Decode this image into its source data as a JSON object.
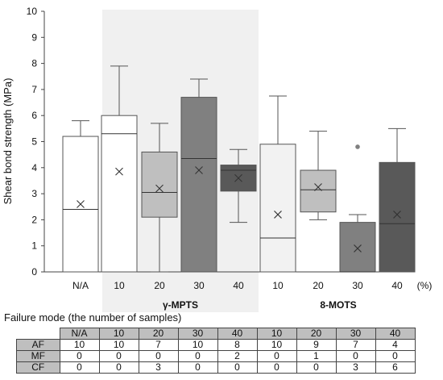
{
  "chart_data": {
    "type": "box",
    "ylabel": "Shear bond strength (MPa)",
    "ylim": [
      0,
      10
    ],
    "yticks": [
      0,
      1,
      2,
      3,
      4,
      5,
      6,
      7,
      8,
      9,
      10
    ],
    "x_unit": "(%)",
    "groups": [
      {
        "label": "",
        "categories": [
          "N/A"
        ],
        "shaded": false
      },
      {
        "label": "γ-MPTS",
        "categories": [
          "10",
          "20",
          "30",
          "40"
        ],
        "shaded": true
      },
      {
        "label": "8-MOTS",
        "categories": [
          "10",
          "20",
          "30",
          "40"
        ],
        "shaded": false
      }
    ],
    "boxes": [
      {
        "group": "",
        "category": "N/A",
        "min": 0,
        "q1": 0,
        "median": 2.4,
        "q3": 5.2,
        "max": 5.8,
        "mean": 2.6,
        "outliers": [],
        "fill": "#ffffff"
      },
      {
        "group": "γ-MPTS",
        "category": "10",
        "min": 0,
        "q1": 0,
        "median": 5.3,
        "q3": 6.0,
        "max": 7.9,
        "mean": 3.85,
        "outliers": [],
        "fill": "#ffffff"
      },
      {
        "group": "γ-MPTS",
        "category": "20",
        "min": 0,
        "q1": 2.1,
        "median": 3.05,
        "q3": 4.6,
        "max": 5.7,
        "mean": 3.2,
        "outliers": [],
        "fill": "#bfbfbf"
      },
      {
        "group": "γ-MPTS",
        "category": "30",
        "min": 0,
        "q1": 0,
        "median": 4.35,
        "q3": 6.7,
        "max": 7.4,
        "mean": 3.9,
        "outliers": [],
        "fill": "#808080"
      },
      {
        "group": "γ-MPTS",
        "category": "40",
        "min": 1.9,
        "q1": 3.1,
        "median": 3.9,
        "q3": 4.1,
        "max": 4.7,
        "mean": 3.6,
        "outliers": [],
        "fill": "#595959"
      },
      {
        "group": "8-MOTS",
        "category": "10",
        "min": 0,
        "q1": 0,
        "median": 1.3,
        "q3": 4.9,
        "max": 6.75,
        "mean": 2.2,
        "outliers": [],
        "fill": "#f2f2f2"
      },
      {
        "group": "8-MOTS",
        "category": "20",
        "min": 2.0,
        "q1": 2.3,
        "median": 3.15,
        "q3": 3.9,
        "max": 5.4,
        "mean": 3.25,
        "outliers": [],
        "fill": "#bfbfbf"
      },
      {
        "group": "8-MOTS",
        "category": "30",
        "min": 0,
        "q1": 0,
        "median": 0,
        "q3": 1.9,
        "max": 2.2,
        "mean": 0.9,
        "outliers": [
          4.8
        ],
        "fill": "#808080"
      },
      {
        "group": "8-MOTS",
        "category": "40",
        "min": 0,
        "q1": 0,
        "median": 1.85,
        "q3": 4.2,
        "max": 5.5,
        "mean": 2.2,
        "outliers": [],
        "fill": "#595959"
      }
    ],
    "grid": false,
    "legend": "none"
  },
  "failure_mode": {
    "title": "Failure mode (the number of samples)",
    "columns": [
      "N/A",
      "10",
      "20",
      "30",
      "40",
      "10",
      "20",
      "30",
      "40"
    ],
    "rows": [
      {
        "label": "AF",
        "values": [
          "10",
          "10",
          "7",
          "10",
          "8",
          "10",
          "9",
          "7",
          "4"
        ]
      },
      {
        "label": "MF",
        "values": [
          "0",
          "0",
          "0",
          "0",
          "2",
          "0",
          "1",
          "0",
          "0"
        ]
      },
      {
        "label": "CF",
        "values": [
          "0",
          "0",
          "3",
          "0",
          "0",
          "0",
          "0",
          "3",
          "6"
        ]
      }
    ]
  }
}
